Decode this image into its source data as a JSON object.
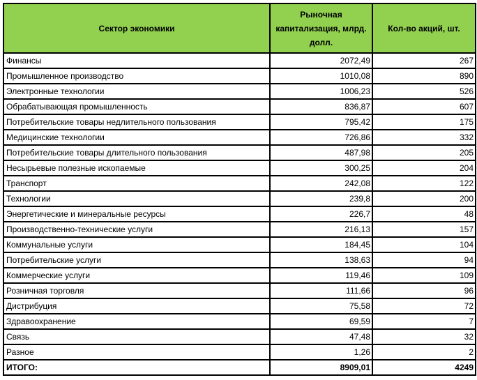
{
  "table": {
    "headers": [
      "Сектор экономики",
      "Рыночная капитализация, млрд. долл.",
      "Кол-во акций, шт."
    ],
    "header_color": "#92d050",
    "rows": [
      [
        "Финансы",
        "2072,49",
        "267"
      ],
      [
        "Промышленное производство",
        "1010,08",
        "890"
      ],
      [
        "Электронные технологии",
        "1006,23",
        "526"
      ],
      [
        "Обрабатывающая промышленность",
        "836,87",
        "607"
      ],
      [
        "Потребительские товары недлительного пользования",
        "795,42",
        "175"
      ],
      [
        "Медицинские технологии",
        "726,86",
        "332"
      ],
      [
        "Потребительские товары длительного пользования",
        "487,98",
        "205"
      ],
      [
        "Несырьевые полезные ископаемые",
        "300,25",
        "204"
      ],
      [
        "Транспорт",
        "242,08",
        "122"
      ],
      [
        "Технологии",
        "239,8",
        "200"
      ],
      [
        "Энергетические и минеральные ресурсы",
        "226,7",
        "48"
      ],
      [
        "Производственно-технические услуги",
        "216,13",
        "157"
      ],
      [
        "Коммунальные услуги",
        "184,45",
        "104"
      ],
      [
        "Потребительские услуги",
        "138,63",
        "94"
      ],
      [
        "Коммерческие услуги",
        "119,46",
        "109"
      ],
      [
        "Розничная торговля",
        "111,66",
        "96"
      ],
      [
        "Дистрибуция",
        "75,58",
        "72"
      ],
      [
        "Здравоохранение",
        "69,59",
        "7"
      ],
      [
        "Связь",
        "47,48",
        "32"
      ],
      [
        "Разное",
        "1,26",
        "2"
      ]
    ],
    "total": [
      "ИТОГО:",
      "8909,01",
      "4249"
    ]
  }
}
